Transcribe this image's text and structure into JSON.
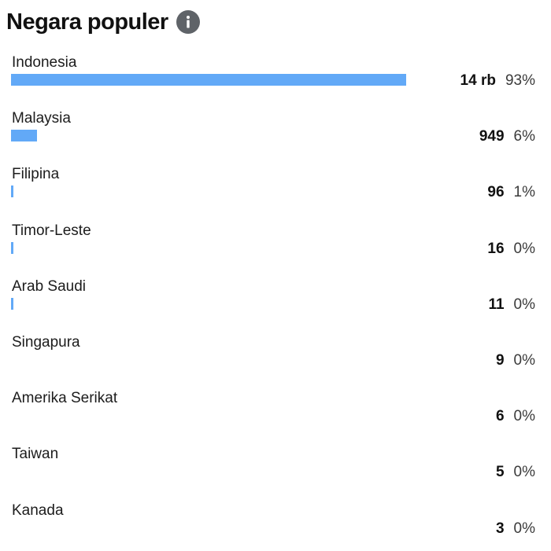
{
  "header": {
    "title": "Negara populer",
    "info_icon": "info-icon"
  },
  "colors": {
    "bar": "#62a9f7",
    "info_icon_bg": "#5f6368"
  },
  "countries": [
    {
      "name": "Indonesia",
      "count": "14 rb",
      "percent": "93%",
      "share": 0.93
    },
    {
      "name": "Malaysia",
      "count": "949",
      "percent": "6%",
      "share": 0.062
    },
    {
      "name": "Filipina",
      "count": "96",
      "percent": "1%",
      "share": 0.006
    },
    {
      "name": "Timor-Leste",
      "count": "16",
      "percent": "0%",
      "share": 0.001
    },
    {
      "name": "Arab Saudi",
      "count": "11",
      "percent": "0%",
      "share": 0.0007
    },
    {
      "name": "Singapura",
      "count": "9",
      "percent": "0%",
      "share": 0.0
    },
    {
      "name": "Amerika Serikat",
      "count": "6",
      "percent": "0%",
      "share": 0.0
    },
    {
      "name": "Taiwan",
      "count": "5",
      "percent": "0%",
      "share": 0.0
    },
    {
      "name": "Kanada",
      "count": "3",
      "percent": "0%",
      "share": 0.0
    }
  ]
}
